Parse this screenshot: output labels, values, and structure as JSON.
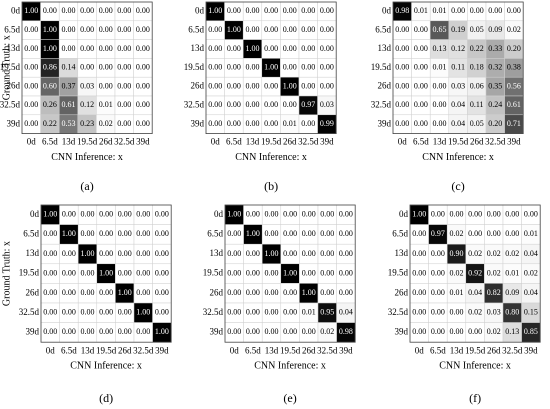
{
  "chart_data": [
    {
      "type": "heatmap",
      "title": "(a)",
      "xlabel": "CNN Inference: x",
      "ylabel": "Ground Truth: x",
      "x_categories": [
        "0d",
        "6.5d",
        "13d",
        "19.5d",
        "26d",
        "32.5d",
        "39d"
      ],
      "y_categories": [
        "0d",
        "6.5d",
        "13d",
        "19.5d",
        "26d",
        "32.5d",
        "39d"
      ],
      "color_min": "#ffffff",
      "color_max": "#000000",
      "values": [
        [
          1,
          0,
          0,
          0,
          0,
          0,
          0
        ],
        [
          0,
          1,
          0,
          0,
          0,
          0,
          0
        ],
        [
          0,
          1,
          0,
          0,
          0,
          0,
          0
        ],
        [
          0,
          0.86,
          0.14,
          0,
          0,
          0,
          0
        ],
        [
          0,
          0.6,
          0.37,
          0.03,
          0,
          0,
          0
        ],
        [
          0,
          0.26,
          0.61,
          0.12,
          0.01,
          0,
          0
        ],
        [
          0,
          0.22,
          0.53,
          0.23,
          0.02,
          0,
          0
        ]
      ],
      "value_labels": [
        [
          "1.00",
          "0.00",
          "0.00",
          "0.00",
          "0.00",
          "0.00",
          "0.00"
        ],
        [
          "0.00",
          "1.00",
          "0.00",
          "0.00",
          "0.00",
          "0.00",
          "0.00"
        ],
        [
          "0.00",
          "1.00",
          "0.00",
          "0.00",
          "0.00",
          "0.00",
          "0.00"
        ],
        [
          "0.00",
          "0.86",
          "0.14",
          "0.00",
          "0.00",
          "0.00",
          "0.00"
        ],
        [
          "0.00",
          "0.60",
          "0.37",
          "0.03",
          "0.00",
          "0.00",
          "0.00"
        ],
        [
          "0.00",
          "0.26",
          "0.61",
          "0.12",
          "0.01",
          "0.00",
          "0.00"
        ],
        [
          "0.00",
          "0.22",
          "0.53",
          "0.23",
          "0.02",
          "0.00",
          "0.00"
        ]
      ]
    },
    {
      "type": "heatmap",
      "title": "(b)",
      "xlabel": "CNN Inference: x",
      "x_categories": [
        "0d",
        "6.5d",
        "13d",
        "19.5d",
        "26d",
        "32.5d",
        "39d"
      ],
      "y_categories": [
        "0d",
        "6.5d",
        "13d",
        "19.5d",
        "26d",
        "32.5d",
        "39d"
      ],
      "color_min": "#ffffff",
      "color_max": "#000000",
      "values": [
        [
          1,
          0,
          0,
          0,
          0,
          0,
          0
        ],
        [
          0,
          1,
          0,
          0,
          0,
          0,
          0
        ],
        [
          0,
          0,
          1,
          0,
          0,
          0,
          0
        ],
        [
          0,
          0,
          0,
          1,
          0,
          0,
          0
        ],
        [
          0,
          0,
          0,
          0,
          1,
          0,
          0
        ],
        [
          0,
          0,
          0,
          0,
          0,
          0.97,
          0.03
        ],
        [
          0,
          0,
          0,
          0,
          0.01,
          0,
          0.99
        ]
      ],
      "value_labels": [
        [
          "1.00",
          "0.00",
          "0.00",
          "0.00",
          "0.00",
          "0.00",
          "0.00"
        ],
        [
          "0.00",
          "1.00",
          "0.00",
          "0.00",
          "0.00",
          "0.00",
          "0.00"
        ],
        [
          "0.00",
          "0.00",
          "1.00",
          "0.00",
          "0.00",
          "0.00",
          "0.00"
        ],
        [
          "0.00",
          "0.00",
          "0.00",
          "1.00",
          "0.00",
          "0.00",
          "0.00"
        ],
        [
          "0.00",
          "0.00",
          "0.00",
          "0.00",
          "1.00",
          "0.00",
          "0.00"
        ],
        [
          "0.00",
          "0.00",
          "0.00",
          "0.00",
          "0.00",
          "0.97",
          "0.03"
        ],
        [
          "0.00",
          "0.00",
          "0.00",
          "0.00",
          "0.01",
          "0.00",
          "0.99"
        ]
      ]
    },
    {
      "type": "heatmap",
      "title": "(c)",
      "xlabel": "CNN Inference: x",
      "x_categories": [
        "0d",
        "6.5d",
        "13d",
        "19.5d",
        "26d",
        "32.5d",
        "39d"
      ],
      "y_categories": [
        "0d",
        "6.5d",
        "13d",
        "19.5d",
        "26d",
        "32.5d",
        "39d"
      ],
      "color_min": "#ffffff",
      "color_max": "#000000",
      "values": [
        [
          0.98,
          0.01,
          0.01,
          0,
          0,
          0,
          0
        ],
        [
          0,
          0,
          0.65,
          0.19,
          0.05,
          0.09,
          0.02
        ],
        [
          0,
          0,
          0.13,
          0.12,
          0.22,
          0.33,
          0.2
        ],
        [
          0,
          0,
          0.01,
          0.11,
          0.18,
          0.32,
          0.38
        ],
        [
          0,
          0,
          0,
          0.03,
          0.06,
          0.35,
          0.56
        ],
        [
          0,
          0,
          0,
          0.04,
          0.11,
          0.24,
          0.61
        ],
        [
          0,
          0,
          0,
          0.04,
          0.05,
          0.2,
          0.71
        ]
      ],
      "value_labels": [
        [
          "0.98",
          "0.01",
          "0.01",
          "0.00",
          "0.00",
          "0.00",
          "0.00"
        ],
        [
          "0.00",
          "0.00",
          "0.65",
          "0.19",
          "0.05",
          "0.09",
          "0.02"
        ],
        [
          "0.00",
          "0.00",
          "0.13",
          "0.12",
          "0.22",
          "0.33",
          "0.20"
        ],
        [
          "0.00",
          "0.00",
          "0.01",
          "0.11",
          "0.18",
          "0.32",
          "0.38"
        ],
        [
          "0.00",
          "0.00",
          "0.00",
          "0.03",
          "0.06",
          "0.35",
          "0.56"
        ],
        [
          "0.00",
          "0.00",
          "0.00",
          "0.04",
          "0.11",
          "0.24",
          "0.61"
        ],
        [
          "0.00",
          "0.00",
          "0.00",
          "0.04",
          "0.05",
          "0.20",
          "0.71"
        ]
      ]
    },
    {
      "type": "heatmap",
      "title": "(d)",
      "xlabel": "CNN Inference: x",
      "ylabel": "Ground Truth: x",
      "x_categories": [
        "0d",
        "6.5d",
        "13d",
        "19.5d",
        "26d",
        "32.5d",
        "39d"
      ],
      "y_categories": [
        "0d",
        "6.5d",
        "13d",
        "19.5d",
        "26d",
        "32.5d",
        "39d"
      ],
      "color_min": "#ffffff",
      "color_max": "#000000",
      "values": [
        [
          1,
          0,
          0,
          0,
          0,
          0,
          0
        ],
        [
          0,
          1,
          0,
          0,
          0,
          0,
          0
        ],
        [
          0,
          0,
          1,
          0,
          0,
          0,
          0
        ],
        [
          0,
          0,
          0,
          1,
          0,
          0,
          0
        ],
        [
          0,
          0,
          0,
          0,
          1,
          0,
          0
        ],
        [
          0,
          0,
          0,
          0,
          0,
          1,
          0
        ],
        [
          0,
          0,
          0,
          0,
          0,
          0,
          1
        ]
      ],
      "value_labels": [
        [
          "1.00",
          "0.00",
          "0.00",
          "0.00",
          "0.00",
          "0.00",
          "0.00"
        ],
        [
          "0.00",
          "1.00",
          "0.00",
          "0.00",
          "0.00",
          "0.00",
          "0.00"
        ],
        [
          "0.00",
          "0.00",
          "1.00",
          "0.00",
          "0.00",
          "0.00",
          "0.00"
        ],
        [
          "0.00",
          "0.00",
          "0.00",
          "1.00",
          "0.00",
          "0.00",
          "0.00"
        ],
        [
          "0.00",
          "0.00",
          "0.00",
          "0.00",
          "1.00",
          "0.00",
          "0.00"
        ],
        [
          "0.00",
          "0.00",
          "0.00",
          "0.00",
          "0.00",
          "1.00",
          "0.00"
        ],
        [
          "0.00",
          "0.00",
          "0.00",
          "0.00",
          "0.00",
          "0.00",
          "1.00"
        ]
      ]
    },
    {
      "type": "heatmap",
      "title": "(e)",
      "xlabel": "CNN Inference: x",
      "x_categories": [
        "0d",
        "6.5d",
        "13d",
        "19.5d",
        "26d",
        "32.5d",
        "39d"
      ],
      "y_categories": [
        "0d",
        "6.5d",
        "13d",
        "19.5d",
        "26d",
        "32.5d",
        "39d"
      ],
      "color_min": "#ffffff",
      "color_max": "#000000",
      "values": [
        [
          1,
          0,
          0,
          0,
          0,
          0,
          0
        ],
        [
          0,
          1,
          0,
          0,
          0,
          0,
          0
        ],
        [
          0,
          0,
          1,
          0,
          0,
          0,
          0
        ],
        [
          0,
          0,
          0,
          1,
          0,
          0,
          0
        ],
        [
          0,
          0,
          0,
          0,
          1,
          0,
          0
        ],
        [
          0,
          0,
          0,
          0,
          0.01,
          0.95,
          0.04
        ],
        [
          0,
          0,
          0,
          0,
          0,
          0.02,
          0.98
        ]
      ],
      "value_labels": [
        [
          "1.00",
          "0.00",
          "0.00",
          "0.00",
          "0.00",
          "0.00",
          "0.00"
        ],
        [
          "0.00",
          "1.00",
          "0.00",
          "0.00",
          "0.00",
          "0.00",
          "0.00"
        ],
        [
          "0.00",
          "0.00",
          "1.00",
          "0.00",
          "0.00",
          "0.00",
          "0.00"
        ],
        [
          "0.00",
          "0.00",
          "0.00",
          "1.00",
          "0.00",
          "0.00",
          "0.00"
        ],
        [
          "0.00",
          "0.00",
          "0.00",
          "0.00",
          "1.00",
          "0.00",
          "0.00"
        ],
        [
          "0.00",
          "0.00",
          "0.00",
          "0.00",
          "0.01",
          "0.95",
          "0.04"
        ],
        [
          "0.00",
          "0.00",
          "0.00",
          "0.00",
          "0.00",
          "0.02",
          "0.98"
        ]
      ]
    },
    {
      "type": "heatmap",
      "title": "(f)",
      "xlabel": "CNN Inference: x",
      "x_categories": [
        "0d",
        "6.5d",
        "13d",
        "19.5d",
        "26d",
        "32.5d",
        "39d"
      ],
      "y_categories": [
        "0d",
        "6.5d",
        "13d",
        "19.5d",
        "26d",
        "32.5d",
        "39d"
      ],
      "color_min": "#ffffff",
      "color_max": "#000000",
      "values": [
        [
          1,
          0,
          0,
          0,
          0,
          0,
          0
        ],
        [
          0,
          0.97,
          0.02,
          0,
          0,
          0,
          0.01
        ],
        [
          0,
          0,
          0.9,
          0.02,
          0.02,
          0.02,
          0.04
        ],
        [
          0,
          0,
          0.02,
          0.92,
          0.02,
          0.01,
          0.02
        ],
        [
          0,
          0,
          0.01,
          0.04,
          0.82,
          0.09,
          0.04
        ],
        [
          0,
          0,
          0,
          0.02,
          0.03,
          0.8,
          0.15
        ],
        [
          0,
          0,
          0,
          0,
          0.02,
          0.13,
          0.85
        ]
      ],
      "value_labels": [
        [
          "1.00",
          "0.00",
          "0.00",
          "0.00",
          "0.00",
          "0.00",
          "0.00"
        ],
        [
          "0.00",
          "0.97",
          "0.02",
          "0.00",
          "0.00",
          "0.00",
          "0.01"
        ],
        [
          "0.00",
          "0.00",
          "0.90",
          "0.02",
          "0.02",
          "0.02",
          "0.04"
        ],
        [
          "0.00",
          "0.00",
          "0.02",
          "0.92",
          "0.02",
          "0.01",
          "0.02"
        ],
        [
          "0.00",
          "0.00",
          "0.01",
          "0.04",
          "0.82",
          "0.09",
          "0.04"
        ],
        [
          "0.00",
          "0.00",
          "0.00",
          "0.02",
          "0.03",
          "0.80",
          "0.15"
        ],
        [
          "0.00",
          "0.00",
          "0.00",
          "0.00",
          "0.02",
          "0.13",
          "0.85"
        ]
      ]
    }
  ]
}
